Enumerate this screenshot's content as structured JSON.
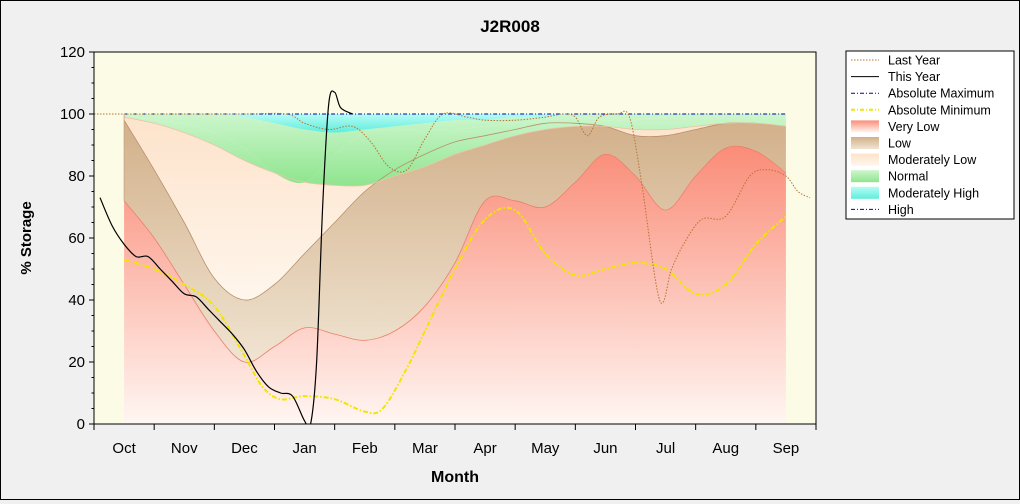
{
  "chart_data": {
    "type": "area",
    "title": "J2R008",
    "xlabel": "Month",
    "ylabel": "% Storage",
    "ylim": [
      0,
      120
    ],
    "yticks": [
      0,
      20,
      40,
      60,
      80,
      100,
      120
    ],
    "xlim": [
      -0.5,
      11.5
    ],
    "months": [
      "Oct",
      "Nov",
      "Dec",
      "Jan",
      "Feb",
      "Mar",
      "Apr",
      "May",
      "Jun",
      "Jul",
      "Aug",
      "Sep"
    ],
    "legend_position": "right",
    "grid": false,
    "colors": {
      "plot_background": "#fbfbe6",
      "very_low": "#fa8c78",
      "low": "#d6b58f",
      "moderately_low": "#fde3cb",
      "normal": "#a9eea9",
      "moderately_high": "#7ff5e8",
      "last_year": "#b87333",
      "this_year": "#000000",
      "absolute_maximum": "#0000aa",
      "absolute_minimum": "#f0e600"
    },
    "bands": {
      "x": [
        0,
        0.5,
        1,
        1.5,
        2,
        2.5,
        3,
        3.5,
        4,
        4.5,
        5,
        5.5,
        6,
        6.5,
        7,
        7.5,
        8,
        8.5,
        9,
        9.5,
        10,
        10.5,
        11
      ],
      "very_low": [
        72,
        60,
        45,
        30,
        20,
        25,
        31,
        29,
        27,
        30,
        38,
        52,
        72,
        72,
        70,
        78,
        87,
        80,
        69,
        80,
        89,
        88,
        81
      ],
      "low": [
        98,
        82,
        65,
        47,
        40,
        45,
        55,
        65,
        75,
        82,
        87,
        91,
        93,
        95,
        97,
        97,
        96,
        93,
        93,
        95,
        97,
        97,
        96
      ],
      "moderately_low": [
        99,
        97,
        94,
        90,
        85,
        81,
        78,
        77,
        77,
        80,
        83,
        87,
        90,
        93,
        95,
        96,
        96,
        95,
        95,
        96,
        97,
        97,
        96
      ],
      "normal": [
        100,
        98,
        97,
        94,
        89,
        81,
        78,
        87,
        94,
        95,
        95,
        95,
        96,
        97,
        98,
        99,
        98,
        98,
        99,
        100,
        100,
        100,
        100
      ],
      "moderately_high": [
        100,
        100,
        100,
        100,
        99,
        97,
        95,
        94,
        95,
        96,
        97,
        98,
        98,
        99,
        99,
        100,
        100,
        100,
        100,
        100,
        100,
        100,
        100
      ],
      "high": [
        100,
        100,
        100,
        100,
        100,
        100,
        100,
        100,
        100,
        100,
        100,
        100,
        100,
        100,
        100,
        100,
        100,
        100,
        100,
        100,
        100,
        100,
        100
      ]
    },
    "series": [
      {
        "name": "Last Year",
        "style": "dotted",
        "x": [
          -0.5,
          0,
          1,
          2,
          2.7,
          3,
          3.4,
          3.8,
          4.1,
          4.4,
          4.7,
          5,
          5.3,
          5.7,
          6,
          6.5,
          7,
          7.3,
          7.5,
          7.7,
          7.9,
          8.2,
          8.4,
          8.6,
          8.9,
          9.1,
          9.3,
          9.6,
          10,
          10.4,
          10.7,
          11,
          11.2,
          11.4
        ],
        "y": [
          100,
          100,
          100,
          100,
          100,
          97,
          95,
          96,
          91,
          83,
          82,
          92,
          100,
          99,
          98,
          98,
          99,
          100,
          99,
          93,
          99,
          100,
          99,
          78,
          40,
          50,
          58,
          66,
          67,
          80,
          82,
          80,
          75,
          73
        ]
      },
      {
        "name": "This Year",
        "style": "solid",
        "x": [
          -0.4,
          -0.2,
          0,
          0.2,
          0.4,
          0.6,
          0.8,
          1,
          1.2,
          1.4,
          1.6,
          1.8,
          2,
          2.2,
          2.4,
          2.6,
          2.8,
          3,
          3.1,
          3.2,
          3.3,
          3.4,
          3.5,
          3.6,
          3.8
        ],
        "y": [
          73,
          64,
          58,
          54,
          54,
          50,
          46,
          42,
          41,
          37,
          33,
          29,
          24,
          17,
          12,
          10,
          9,
          1,
          0,
          20,
          70,
          103,
          107,
          102,
          100
        ]
      },
      {
        "name": "Absolute Maximum",
        "style": "dashdot",
        "x": [
          0,
          11
        ],
        "y": [
          100,
          100
        ]
      },
      {
        "name": "Absolute Minimum",
        "style": "dashdot",
        "x": [
          0,
          0.5,
          1,
          1.5,
          2,
          2.3,
          2.6,
          3,
          3.5,
          4,
          4.3,
          4.7,
          5,
          5.5,
          6,
          6.5,
          7,
          7.5,
          8,
          8.5,
          9,
          9.5,
          10,
          10.5,
          11
        ],
        "y": [
          53,
          50,
          45,
          38,
          22,
          12,
          8,
          9,
          8,
          4,
          5,
          18,
          30,
          50,
          66,
          69,
          55,
          48,
          50,
          52,
          50,
          42,
          45,
          58,
          67
        ]
      }
    ],
    "legend": [
      {
        "label": "Last Year",
        "kind": "line",
        "style": "dotted",
        "color": "#b87333"
      },
      {
        "label": "This Year",
        "kind": "line",
        "style": "solid",
        "color": "#000000"
      },
      {
        "label": "Absolute Maximum",
        "kind": "line",
        "style": "dashdot",
        "color": "#0000aa"
      },
      {
        "label": "Absolute Minimum",
        "kind": "line",
        "style": "dashdot",
        "color": "#f0e600"
      },
      {
        "label": "Very Low",
        "kind": "area",
        "color": "#fa8c78"
      },
      {
        "label": "Low",
        "kind": "area",
        "color": "#d6b58f"
      },
      {
        "label": "Moderately Low",
        "kind": "area",
        "color": "#fde3cb"
      },
      {
        "label": "Normal",
        "kind": "area",
        "color": "#a9eea9"
      },
      {
        "label": "Moderately High",
        "kind": "area",
        "color": "#7ff5e8"
      },
      {
        "label": "High",
        "kind": "line",
        "style": "dashdot",
        "color": "#0000aa"
      }
    ]
  }
}
